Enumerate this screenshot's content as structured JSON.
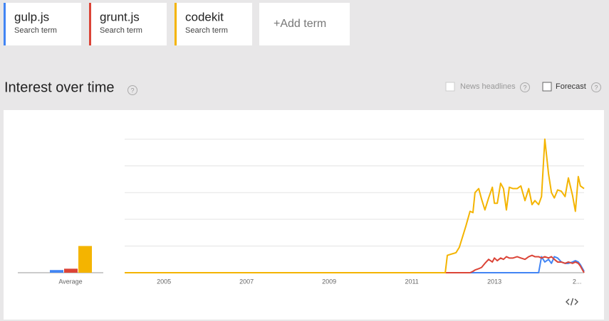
{
  "search_term_label": "Search term",
  "add_term": "+Add term",
  "section_title": "Interest over time",
  "help": "?",
  "options": [
    "News headlines",
    "Forecast"
  ],
  "chart_data": {
    "type": "line",
    "average_label": "Average",
    "x": [
      2004.05,
      2011.81,
      2011.86,
      2012.07,
      2012.15,
      2012.31,
      2012.41,
      2012.48,
      2012.53,
      2012.62,
      2012.69,
      2012.77,
      2012.86,
      2012.95,
      2013.0,
      2013.07,
      2013.15,
      2013.22,
      2013.29,
      2013.36,
      2013.45,
      2013.55,
      2013.64,
      2013.74,
      2013.83,
      2013.91,
      2013.98,
      2014.07,
      2014.14,
      2014.22,
      2014.31,
      2014.38,
      2014.45,
      2014.53,
      2014.62,
      2014.71,
      2014.79,
      2014.89,
      2014.96,
      2015.03,
      2015.08,
      2015.17
    ],
    "series": [
      {
        "name": "gulp.js",
        "color": "#4285f4",
        "average": 2,
        "values": [
          0,
          0,
          0,
          0,
          0,
          0,
          0,
          0,
          0,
          0,
          0,
          0,
          0,
          0,
          0,
          0,
          0,
          0,
          0,
          0,
          0,
          0,
          0,
          0,
          0,
          0,
          0,
          0,
          12,
          8,
          10,
          7,
          12,
          11,
          8,
          7,
          7,
          8,
          9,
          8,
          6,
          1
        ]
      },
      {
        "name": "grunt.js",
        "color": "#db4437",
        "average": 3,
        "values": [
          0,
          0,
          0,
          0,
          0,
          0,
          0,
          1,
          2,
          3,
          4,
          7,
          10,
          8,
          11,
          9,
          11,
          10,
          12,
          11,
          11,
          12,
          11,
          10,
          12,
          13,
          12,
          12,
          11,
          12,
          11,
          12,
          10,
          8,
          8,
          7,
          8,
          7,
          8,
          7,
          5,
          0
        ]
      },
      {
        "name": "codekit",
        "color": "#f4b400",
        "average": 20,
        "values": [
          0,
          0,
          13,
          15,
          19,
          35,
          46,
          45,
          60,
          63,
          55,
          47,
          56,
          64,
          52,
          52,
          67,
          63,
          47,
          64,
          63,
          63,
          65,
          54,
          63,
          51,
          54,
          51,
          57,
          100,
          74,
          60,
          56,
          62,
          61,
          57,
          71,
          58,
          46,
          72,
          65,
          63
        ]
      }
    ],
    "xlim": [
      2004.05,
      2015.17
    ],
    "xticks": [
      2005,
      2007,
      2009,
      2011,
      2013,
      {
        "value": 2015,
        "label": "2..."
      }
    ],
    "ylim": [
      0,
      100
    ],
    "yticks": [
      0,
      20,
      40,
      60,
      80,
      100
    ],
    "grid": true
  }
}
